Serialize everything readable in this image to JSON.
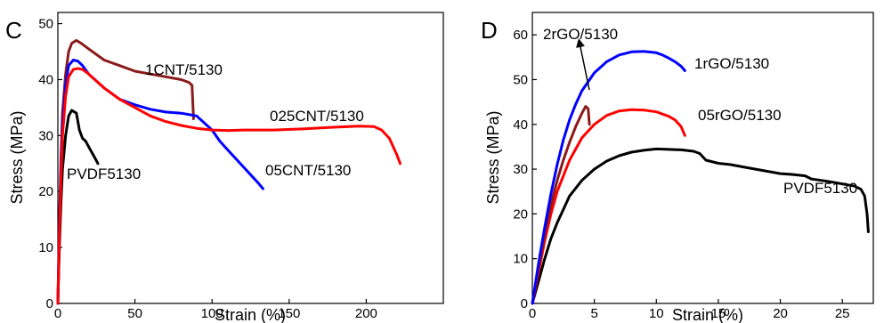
{
  "chart_data": [
    {
      "type": "line",
      "panel_label": "C",
      "xlabel": "Strain (%)",
      "ylabel": "Stress (MPa)",
      "xlim": [
        0,
        250
      ],
      "ylim": [
        0,
        52
      ],
      "xticks": [
        0,
        50,
        100,
        150,
        200
      ],
      "yticks": [
        0,
        10,
        20,
        30,
        40,
        50
      ],
      "grid": false,
      "legend": "none (curves labeled directly)",
      "series": [
        {
          "name": "PVDF5130",
          "color": "#000000",
          "x": [
            0,
            1,
            2,
            3,
            5,
            7,
            9,
            12,
            14,
            16,
            18,
            20,
            22,
            24,
            26
          ],
          "y": [
            0,
            10,
            18,
            24,
            30,
            33.5,
            34.5,
            34,
            31,
            29.5,
            29,
            28,
            27,
            26,
            25
          ]
        },
        {
          "name": "1CNT/5130",
          "color": "#8b1a1a",
          "x": [
            0,
            1,
            2,
            3,
            5,
            7,
            9,
            12,
            15,
            20,
            30,
            40,
            50,
            60,
            70,
            80,
            85,
            87,
            88
          ],
          "y": [
            0,
            14,
            26,
            34,
            41,
            45,
            46.5,
            47,
            46.5,
            45.5,
            43.5,
            42.5,
            41.5,
            41,
            40.5,
            40,
            39.5,
            39,
            33
          ]
        },
        {
          "name": "05CNT/5130",
          "color": "#0000ff",
          "x": [
            0,
            1,
            2,
            3,
            5,
            7,
            10,
            13,
            16,
            20,
            30,
            40,
            50,
            60,
            70,
            80,
            90,
            100,
            105,
            110,
            120,
            130,
            133
          ],
          "y": [
            0,
            13,
            24,
            32,
            39,
            42.5,
            43.5,
            43.3,
            42.5,
            41,
            38.5,
            36.5,
            35.5,
            34.7,
            34.2,
            34,
            33.5,
            31,
            29,
            27.5,
            24.5,
            21.5,
            20.5
          ]
        },
        {
          "name": "025CNT/5130",
          "color": "#ff0000",
          "x": [
            0,
            1,
            2,
            3,
            5,
            7,
            10,
            13,
            16,
            20,
            30,
            40,
            50,
            60,
            70,
            80,
            90,
            100,
            110,
            120,
            140,
            160,
            180,
            195,
            205,
            210,
            215,
            220,
            222
          ],
          "y": [
            0,
            12,
            22,
            30,
            37,
            40.5,
            41.8,
            42,
            41.8,
            41,
            38.5,
            36.5,
            35,
            33.5,
            32.5,
            31.8,
            31.3,
            31,
            30.9,
            31,
            31,
            31.2,
            31.5,
            31.7,
            31.6,
            31,
            29.5,
            26.5,
            25
          ]
        }
      ],
      "annotations": [
        {
          "text": "1CNT/5130",
          "series": "1CNT/5130"
        },
        {
          "text": "025CNT/5130",
          "series": "025CNT/5130"
        },
        {
          "text": "05CNT/5130",
          "series": "05CNT/5130"
        },
        {
          "text": "PVDF5130",
          "series": "PVDF5130"
        }
      ]
    },
    {
      "type": "line",
      "panel_label": "D",
      "xlabel": "Strain (%)",
      "ylabel": "Stress (MPa)",
      "xlim": [
        0,
        27.5
      ],
      "ylim": [
        0,
        65
      ],
      "xticks": [
        0,
        5,
        10,
        15,
        20,
        25
      ],
      "yticks": [
        0,
        10,
        20,
        30,
        40,
        50,
        60
      ],
      "grid": false,
      "legend": "none (curves labeled directly)",
      "series": [
        {
          "name": "PVDF5130",
          "color": "#000000",
          "x": [
            0,
            0.5,
            1,
            1.5,
            2,
            3,
            4,
            5,
            6,
            7,
            8,
            9,
            10,
            11,
            12,
            13,
            13.5,
            14,
            15,
            16,
            17,
            18,
            19,
            20,
            21,
            22,
            22.5,
            24,
            25,
            26,
            26.5,
            26.8,
            27,
            27.1
          ],
          "y": [
            0,
            5,
            10,
            14.5,
            18,
            24,
            27.5,
            30,
            31.8,
            33,
            33.8,
            34.2,
            34.5,
            34.4,
            34.3,
            34,
            33.5,
            32,
            31.3,
            31,
            30.5,
            30,
            29.5,
            29,
            28.8,
            28.5,
            27.8,
            27.2,
            26.7,
            26.2,
            25.5,
            24,
            20,
            16
          ]
        },
        {
          "name": "05rGO/5130",
          "color": "#ff0000",
          "x": [
            0,
            0.5,
            1,
            1.5,
            2,
            3,
            4,
            5,
            6,
            7,
            8,
            9,
            10,
            11,
            11.5,
            12,
            12.3
          ],
          "y": [
            0,
            7,
            14,
            20,
            25,
            32,
            37,
            40,
            42,
            43,
            43.3,
            43.2,
            42.8,
            41.8,
            41,
            39.5,
            37.5
          ]
        },
        {
          "name": "2rGO/5130",
          "color": "#8b1a1a",
          "x": [
            0,
            0.5,
            1,
            1.5,
            2,
            2.5,
            3,
            3.5,
            4,
            4.3,
            4.5,
            4.6
          ],
          "y": [
            0,
            8,
            15.5,
            22,
            27.5,
            32,
            36,
            39.5,
            42.5,
            44,
            43.5,
            40
          ]
        },
        {
          "name": "1rGO/5130",
          "color": "#0000ff",
          "x": [
            0,
            0.5,
            1,
            1.5,
            2,
            2.5,
            3,
            3.5,
            4,
            5,
            6,
            7,
            8,
            9,
            10,
            10.5,
            11,
            11.5,
            12,
            12.3
          ],
          "y": [
            0,
            9,
            17,
            24.5,
            31,
            36.5,
            41,
            44.5,
            47.5,
            51.5,
            54,
            55.5,
            56.2,
            56.3,
            56,
            55.5,
            54.8,
            54,
            53,
            52
          ]
        }
      ],
      "annotations": [
        {
          "text": "2rGO/5130",
          "series": "2rGO/5130",
          "arrow": true
        },
        {
          "text": "1rGO/5130",
          "series": "1rGO/5130"
        },
        {
          "text": "05rGO/5130",
          "series": "05rGO/5130"
        },
        {
          "text": "PVDF5130",
          "series": "PVDF5130"
        }
      ]
    }
  ]
}
